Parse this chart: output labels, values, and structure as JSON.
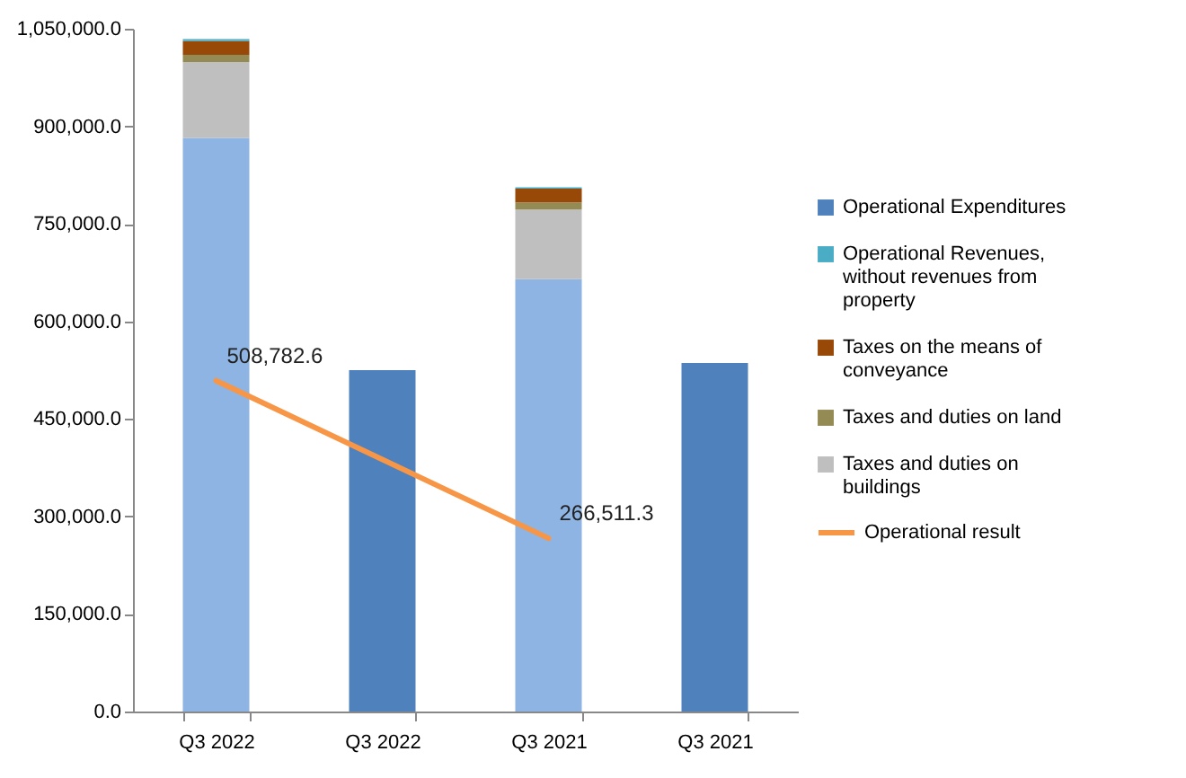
{
  "chart_data": {
    "type": "bar",
    "stacked": true,
    "categories": [
      "Q3 2022",
      "Q3 2022",
      "Q3 2021",
      "Q3 2021"
    ],
    "ylim": [
      0,
      1050000
    ],
    "yticks": [
      {
        "value": 0,
        "label": "0.0"
      },
      {
        "value": 150000,
        "label": "150,000.0"
      },
      {
        "value": 300000,
        "label": "300,000.0"
      },
      {
        "value": 450000,
        "label": "450,000.0"
      },
      {
        "value": 600000,
        "label": "600,000.0"
      },
      {
        "value": 750000,
        "label": "750,000.0"
      },
      {
        "value": 900000,
        "label": "900,000.0"
      },
      {
        "value": 1050000,
        "label": "1,050,000.0"
      }
    ],
    "grid": false,
    "legend": "right",
    "series": [
      {
        "color": "#8eb4e3",
        "values": [
          882000,
          null,
          665000,
          null
        ]
      },
      {
        "name": "Taxes and duties on buildings",
        "color": "#bfbfbf",
        "values": [
          117000,
          null,
          107000,
          null
        ]
      },
      {
        "name": "Taxes and duties on land",
        "color": "#948a54",
        "values": [
          11000,
          null,
          11000,
          null
        ]
      },
      {
        "name": "Taxes on the means of conveyance",
        "color": "#984807",
        "values": [
          21000,
          null,
          21000,
          null
        ]
      },
      {
        "name": "Operational Revenues, without revenues from property",
        "color": "#4bacc6",
        "values": [
          3000,
          null,
          2000,
          null
        ]
      },
      {
        "name": "Operational Expenditures",
        "color": "#4f81bd",
        "values": [
          null,
          525000,
          null,
          536000
        ]
      },
      {
        "name": "Operational result",
        "type": "line",
        "color": "#f79646",
        "values": [
          508782.6,
          null,
          266511.3,
          null
        ],
        "value_labels": [
          "508,782.6",
          null,
          "266,511.3",
          null
        ]
      }
    ]
  }
}
